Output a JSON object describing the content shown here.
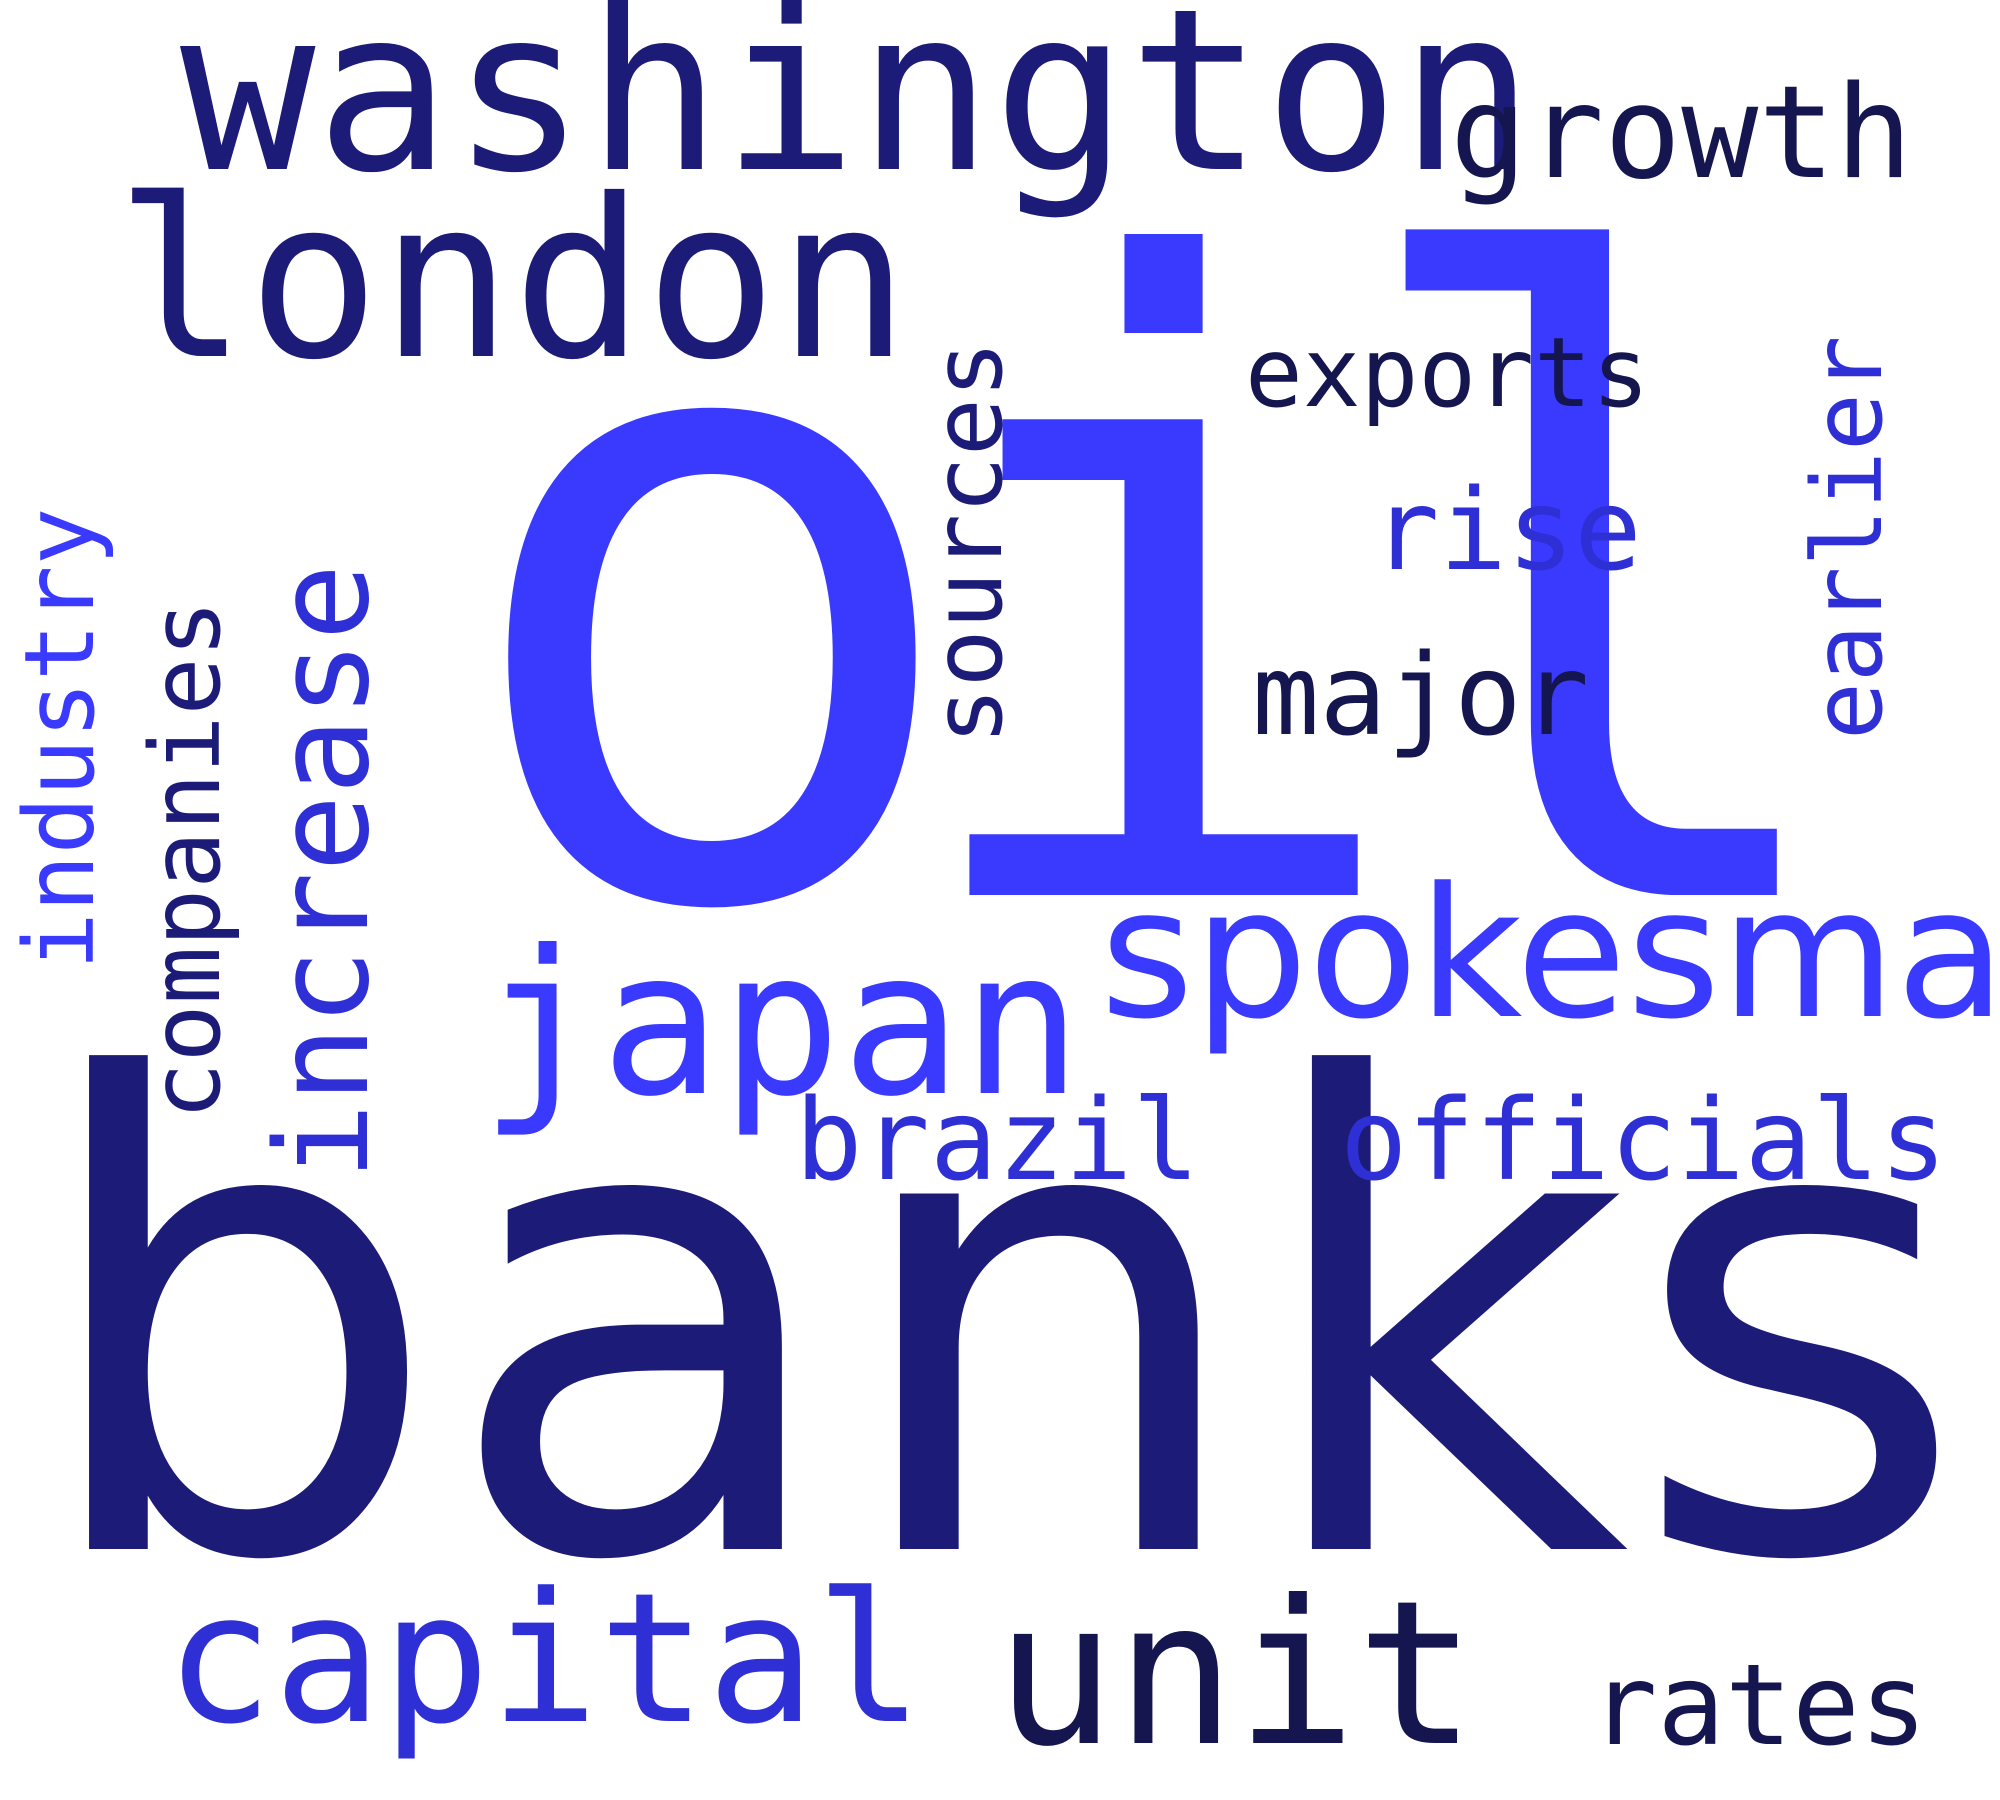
{
  "colors": {
    "background": "#ffffff",
    "navy": "#1c1c78",
    "blue": "#3a3aff",
    "royal": "#2f2fd6",
    "ink": "#15154f"
  },
  "words": {
    "oil": "oil",
    "banks": "banks",
    "washington": "washington",
    "london": "london",
    "growth": "growth",
    "exports": "exports",
    "rise": "rise",
    "major": "major",
    "earlier": "earlier",
    "sources": "sources",
    "increase": "increase",
    "companies": "companies",
    "industry": "industry",
    "spokesman": "spokesman",
    "japan": "japan",
    "brazil": "brazil",
    "officials": "officials",
    "capital": "capital",
    "unit": "unit",
    "rates": "rates"
  }
}
